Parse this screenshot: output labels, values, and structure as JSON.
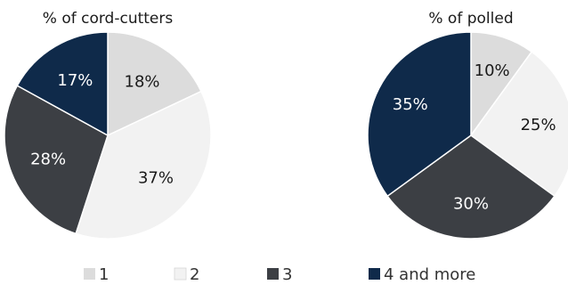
{
  "chart_data": [
    {
      "type": "pie",
      "title": "% of cord-cutters",
      "categories": [
        "1",
        "2",
        "3",
        "4 and more"
      ],
      "values": [
        18,
        37,
        28,
        17
      ],
      "labels": [
        "18%",
        "37%",
        "28%",
        "17%"
      ],
      "start_angle_deg": 0,
      "direction": "clockwise"
    },
    {
      "type": "pie",
      "title": "% of polled",
      "categories": [
        "1",
        "2",
        "3",
        "4 and more"
      ],
      "values": [
        10,
        25,
        30,
        35
      ],
      "labels": [
        "10%",
        "25%",
        "30%",
        "35%"
      ],
      "start_angle_deg": 0,
      "direction": "clockwise"
    }
  ],
  "legend": {
    "placement": "bottom",
    "items": [
      {
        "label": "1",
        "color": "#dcdcdc"
      },
      {
        "label": "2",
        "color": "#f2f2f2"
      },
      {
        "label": "3",
        "color": "#3c3f44"
      },
      {
        "label": "4 and more",
        "color": "#0f2a4a"
      }
    ]
  },
  "colors": {
    "slice_1": "#dcdcdc",
    "slice_2": "#f2f2f2",
    "slice_3": "#3c3f44",
    "slice_4": "#0f2a4a",
    "label_on_light": "#1a1a1a",
    "label_on_dark": "#ffffff"
  }
}
